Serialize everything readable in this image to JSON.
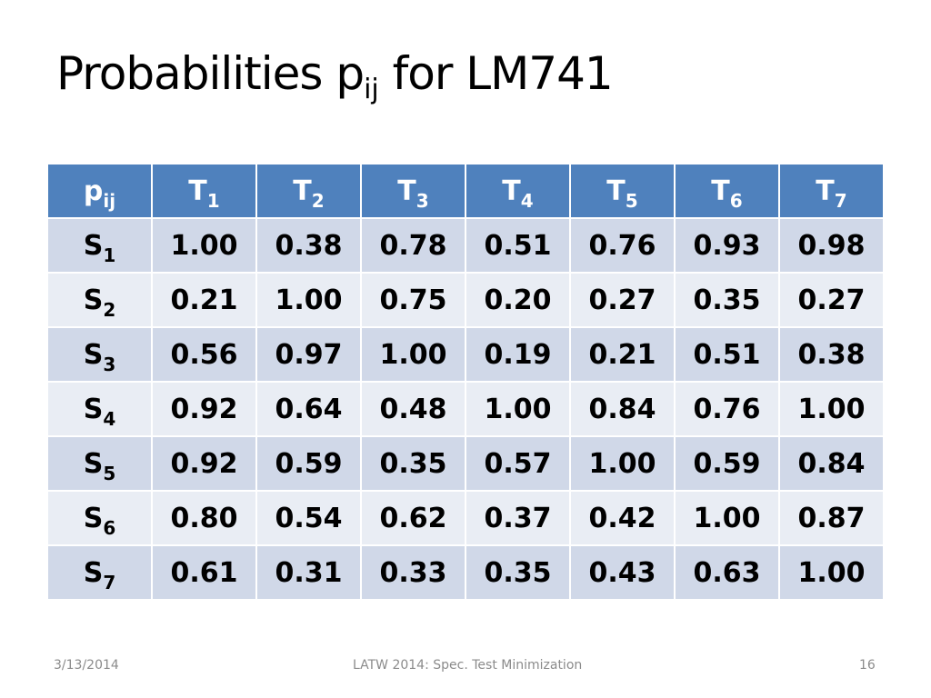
{
  "title": {
    "text": "Probabilities p",
    "subscript": "ij",
    "suffix": " for LM741"
  },
  "table": {
    "corner": {
      "base": "p",
      "sub": "ij"
    },
    "columns": [
      {
        "base": "T",
        "sub": "1"
      },
      {
        "base": "T",
        "sub": "2"
      },
      {
        "base": "T",
        "sub": "3"
      },
      {
        "base": "T",
        "sub": "4"
      },
      {
        "base": "T",
        "sub": "5"
      },
      {
        "base": "T",
        "sub": "6"
      },
      {
        "base": "T",
        "sub": "7"
      }
    ],
    "rows": [
      {
        "base": "S",
        "sub": "1",
        "values": [
          "1.00",
          "0.38",
          "0.78",
          "0.51",
          "0.76",
          "0.93",
          "0.98"
        ]
      },
      {
        "base": "S",
        "sub": "2",
        "values": [
          "0.21",
          "1.00",
          "0.75",
          "0.20",
          "0.27",
          "0.35",
          "0.27"
        ]
      },
      {
        "base": "S",
        "sub": "3",
        "values": [
          "0.56",
          "0.97",
          "1.00",
          "0.19",
          "0.21",
          "0.51",
          "0.38"
        ]
      },
      {
        "base": "S",
        "sub": "4",
        "values": [
          "0.92",
          "0.64",
          "0.48",
          "1.00",
          "0.84",
          "0.76",
          "1.00"
        ]
      },
      {
        "base": "S",
        "sub": "5",
        "values": [
          "0.92",
          "0.59",
          "0.35",
          "0.57",
          "1.00",
          "0.59",
          "0.84"
        ]
      },
      {
        "base": "S",
        "sub": "6",
        "values": [
          "0.80",
          "0.54",
          "0.62",
          "0.37",
          "0.42",
          "1.00",
          "0.87"
        ]
      },
      {
        "base": "S",
        "sub": "7",
        "values": [
          "0.61",
          "0.31",
          "0.33",
          "0.35",
          "0.43",
          "0.63",
          "1.00"
        ]
      }
    ]
  },
  "footer": {
    "date": "3/13/2014",
    "center": "LATW 2014: Spec. Test Minimization",
    "page": "16"
  },
  "colors": {
    "header_bg": "#4f81bd",
    "row_odd_bg": "#d0d8e8",
    "row_even_bg": "#e9edf4",
    "footer_text": "#8b8b8b"
  }
}
